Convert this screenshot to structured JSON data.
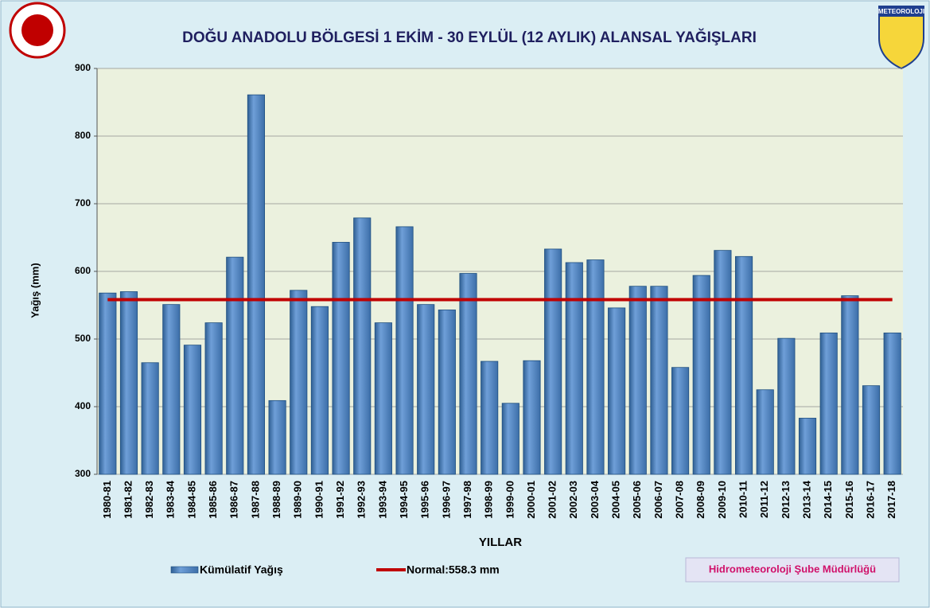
{
  "chart_data": {
    "type": "bar",
    "title": "DOĞU ANADOLU BÖLGESİ  1 EKİM - 30 EYLÜL (12 AYLIK) ALANSAL YAĞIŞLARI",
    "ylabel": "Yağış (mm)",
    "xlabel": "YILLAR",
    "categories": [
      "1980-81",
      "1981-82",
      "1982-83",
      "1983-84",
      "1984-85",
      "1985-86",
      "1986-87",
      "1987-88",
      "1988-89",
      "1989-90",
      "1990-91",
      "1991-92",
      "1992-93",
      "1993-94",
      "1994-95",
      "1995-96",
      "1996-97",
      "1997-98",
      "1998-99",
      "1999-00",
      "2000-01",
      "2001-02",
      "2002-03",
      "2003-04",
      "2004-05",
      "2005-06",
      "2006-07",
      "2007-08",
      "2008-09",
      "2009-10",
      "2010-11",
      "2011-12",
      "2012-13",
      "2013-14",
      "2014-15",
      "2015-16",
      "2016-17",
      "2017-18"
    ],
    "series": [
      {
        "name": "Kümülatif Yağış",
        "color": "#4f81bd",
        "values": [
          568,
          570,
          465,
          551,
          491,
          524,
          621,
          861,
          409,
          572,
          548,
          643,
          679,
          524,
          666,
          551,
          543,
          597,
          467,
          405,
          468,
          633,
          613,
          617,
          546,
          578,
          578,
          458,
          594,
          631,
          622,
          425,
          501,
          383,
          509,
          564,
          431,
          509
        ]
      }
    ],
    "normal": {
      "name": "Normal:558.3 mm",
      "value": 558.3,
      "color": "#c00000"
    },
    "ylim": [
      300,
      900
    ],
    "yticks": [
      300,
      400,
      500,
      600,
      700,
      800,
      900
    ],
    "grid": true,
    "footer": "Hidrometeoroloji Şube Müdürlüğü",
    "logo": "METEOROLOJI"
  }
}
